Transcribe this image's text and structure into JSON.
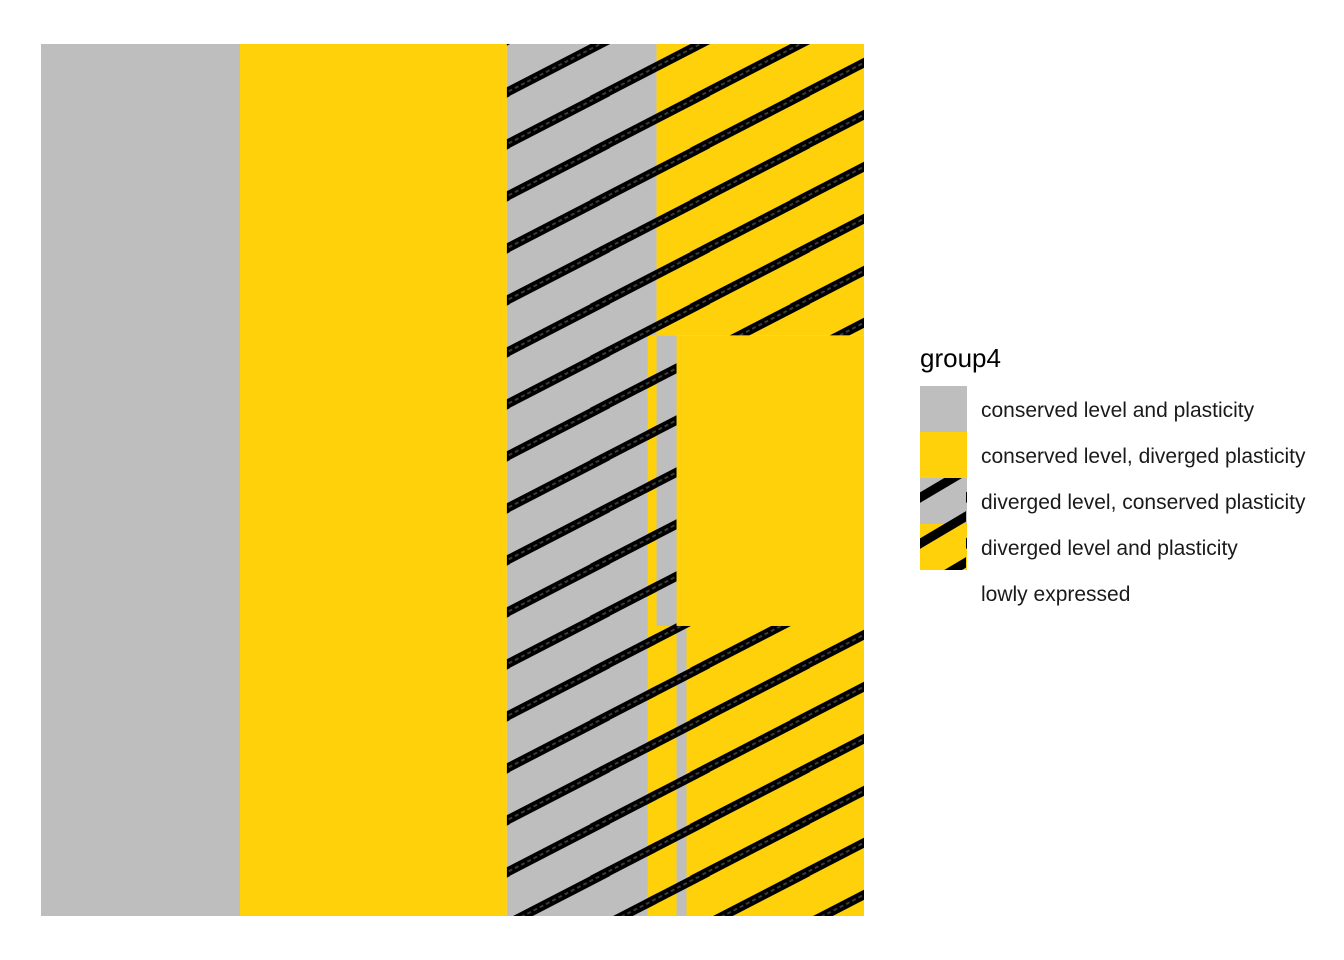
{
  "chart_data": {
    "type": "bar",
    "orientation": "stacked mosaic / treemap-like tiles",
    "title": "",
    "xlabel": "",
    "ylabel": "",
    "grid": false,
    "legend_position": "right",
    "legend": {
      "title": "group4",
      "entries": [
        {
          "label": "conserved level and plasticity",
          "fill": "#bebebe",
          "pattern": "none"
        },
        {
          "label": "conserved level, diverged plasticity",
          "fill": "#ffd10a",
          "pattern": "none"
        },
        {
          "label": "diverged level, conserved plasticity",
          "fill": "#bebebe",
          "pattern": "stripe"
        },
        {
          "label": "diverged level and plasticity",
          "fill": "#ffd10a",
          "pattern": "stripe"
        },
        {
          "label": "lowly expressed",
          "fill": "#ffffff",
          "pattern": "none"
        }
      ]
    },
    "x_range": [
      0,
      1
    ],
    "y_range": [
      0,
      1
    ],
    "tiles": [
      {
        "group": "conserved level and plasticity",
        "x": [
          0.0,
          0.2418
        ],
        "y": [
          0.0,
          1.0
        ]
      },
      {
        "group": "conserved level, diverged plasticity",
        "x": [
          0.2418,
          0.5661
        ],
        "y": [
          0.0,
          1.0
        ]
      },
      {
        "group": "diverged level, conserved plasticity",
        "x": [
          0.5661,
          0.7479
        ],
        "y": [
          0.0,
          1.0
        ]
      },
      {
        "group": "diverged level and plasticity",
        "x": [
          0.7479,
          1.0
        ],
        "y": [
          0.6659,
          1.0
        ]
      },
      {
        "group": "diverged level and plasticity",
        "x": [
          0.737,
          0.7722
        ],
        "y": [
          0.3326,
          0.6659
        ]
      },
      {
        "group": "conserved level, diverged plasticity",
        "x": [
          0.7722,
          1.0
        ],
        "y": [
          0.3326,
          0.6659
        ]
      },
      {
        "group": "conserved level and plasticity",
        "x": [
          0.7479,
          0.7722
        ],
        "y": [
          0.3326,
          0.6659
        ]
      },
      {
        "group": "diverged level and plasticity",
        "x": [
          0.737,
          0.7843
        ],
        "y": [
          0.0,
          0.3326
        ]
      },
      {
        "group": "conserved level and plasticity",
        "x": [
          0.7722,
          0.7843
        ],
        "y": [
          0.0,
          0.3326
        ]
      },
      {
        "group": "diverged level and plasticity",
        "x": [
          0.7843,
          1.0
        ],
        "y": [
          0.0,
          0.3326
        ]
      }
    ],
    "colors": {
      "grey": "#bebebe",
      "yellow": "#ffd10a",
      "stripe": "#000000"
    }
  }
}
